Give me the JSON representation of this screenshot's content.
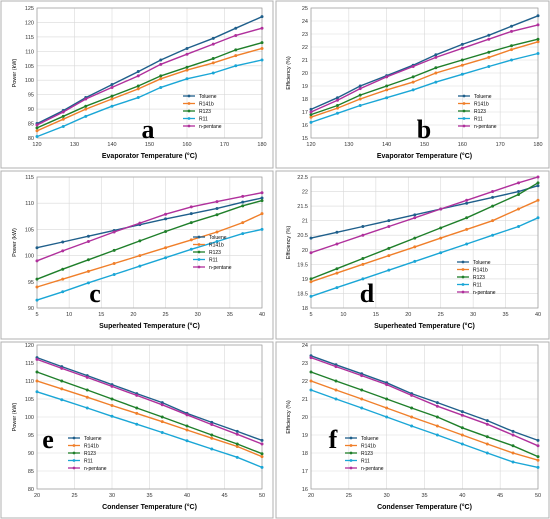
{
  "colors": {
    "Toluene": "#1f5f8b",
    "R141b": "#f07f2a",
    "R123": "#1f7f2a",
    "R11": "#1aa6d6",
    "n-pentane": "#b0309c"
  },
  "chart_data": [
    {
      "type": "line",
      "letter": "a",
      "xlabel": "Evaporator Temperature (°C)",
      "ylabel": "Power (kW)",
      "xlim": [
        120,
        180
      ],
      "ylim": [
        80,
        125
      ],
      "xticks": [
        120,
        130,
        140,
        150,
        160,
        170,
        180
      ],
      "yticks": [
        80,
        85,
        90,
        95,
        100,
        105,
        110,
        115,
        120,
        125
      ],
      "legend": "right",
      "x": [
        120,
        127,
        133,
        140,
        147,
        153,
        160,
        167,
        173,
        180
      ],
      "series": [
        {
          "name": "Toluene",
          "values": [
            85,
            89.5,
            94,
            98.5,
            103,
            107,
            111,
            114.5,
            118,
            122
          ]
        },
        {
          "name": "R141b",
          "values": [
            82.5,
            86.5,
            90,
            93.5,
            97,
            100.5,
            103.5,
            106,
            108.5,
            111
          ]
        },
        {
          "name": "R123",
          "values": [
            83.5,
            87.5,
            91,
            94.5,
            98,
            101.5,
            104.5,
            107.5,
            110.5,
            113
          ]
        },
        {
          "name": "R11",
          "values": [
            80.5,
            84,
            87.5,
            91,
            94,
            97.5,
            100.5,
            102.5,
            105,
            107
          ]
        },
        {
          "name": "n-pentane",
          "values": [
            84.5,
            89,
            93.5,
            97.5,
            101.5,
            105.5,
            109,
            112.5,
            115.5,
            118
          ]
        }
      ]
    },
    {
      "type": "line",
      "letter": "b",
      "xlabel": "Evaporator Temperature (°C)",
      "ylabel": "Efficiency (%)",
      "xlim": [
        120,
        180
      ],
      "ylim": [
        15,
        25
      ],
      "xticks": [
        120,
        130,
        140,
        150,
        160,
        170,
        180
      ],
      "yticks": [
        15,
        16,
        17,
        18,
        19,
        20,
        21,
        22,
        23,
        24,
        25
      ],
      "legend": "right",
      "x": [
        120,
        127,
        133,
        140,
        147,
        153,
        160,
        167,
        173,
        180
      ],
      "series": [
        {
          "name": "Toluene",
          "values": [
            17.2,
            18.1,
            19,
            19.8,
            20.6,
            21.4,
            22.2,
            22.9,
            23.6,
            24.4
          ]
        },
        {
          "name": "R141b",
          "values": [
            16.6,
            17.3,
            18,
            18.7,
            19.3,
            20,
            20.6,
            21.2,
            21.8,
            22.4
          ]
        },
        {
          "name": "R123",
          "values": [
            16.8,
            17.5,
            18.3,
            19,
            19.7,
            20.4,
            21,
            21.6,
            22.1,
            22.6
          ]
        },
        {
          "name": "R11",
          "values": [
            16.2,
            16.9,
            17.5,
            18.1,
            18.7,
            19.3,
            19.9,
            20.5,
            21,
            21.5
          ]
        },
        {
          "name": "n-pentane",
          "values": [
            17,
            17.9,
            18.8,
            19.7,
            20.5,
            21.2,
            21.9,
            22.6,
            23.2,
            23.7
          ]
        }
      ]
    },
    {
      "type": "line",
      "letter": "c",
      "xlabel": "Superheated Temperature (°C)",
      "ylabel": "Power (kW)",
      "xlim": [
        5,
        40
      ],
      "ylim": [
        90,
        115
      ],
      "xticks": [
        5,
        10,
        15,
        20,
        25,
        30,
        35,
        40
      ],
      "yticks": [
        90,
        95,
        100,
        105,
        110,
        115
      ],
      "legend": "bottom-right",
      "x": [
        5,
        9,
        13,
        17,
        21,
        25,
        29,
        33,
        37,
        40
      ],
      "series": [
        {
          "name": "Toluene",
          "values": [
            101.5,
            102.6,
            103.7,
            104.8,
            105.9,
            107,
            108,
            109,
            110.2,
            111
          ]
        },
        {
          "name": "R141b",
          "values": [
            94,
            95.5,
            97,
            98.5,
            100,
            101.5,
            103,
            104.5,
            106.3,
            108
          ]
        },
        {
          "name": "R123",
          "values": [
            95.5,
            97.4,
            99.2,
            101,
            102.8,
            104.6,
            106.3,
            107.8,
            109.5,
            110.5
          ]
        },
        {
          "name": "R11",
          "values": [
            91.5,
            93.1,
            94.8,
            96.4,
            98,
            99.6,
            101.2,
            102.7,
            104.2,
            105
          ]
        },
        {
          "name": "n-pentane",
          "values": [
            99,
            100.9,
            102.7,
            104.5,
            106.2,
            107.9,
            109.3,
            110.3,
            111.3,
            112
          ]
        }
      ]
    },
    {
      "type": "line",
      "letter": "d",
      "xlabel": "Superheated Temperature (°C)",
      "ylabel": "Efficiency (%)",
      "xlim": [
        5,
        40
      ],
      "ylim": [
        18,
        22.5
      ],
      "xticks": [
        5,
        10,
        15,
        20,
        25,
        30,
        35,
        40
      ],
      "yticks": [
        18,
        18.5,
        19,
        19.5,
        20,
        20.5,
        21,
        21.5,
        22,
        22.5
      ],
      "legend": "bottom-right",
      "x": [
        5,
        9,
        13,
        17,
        21,
        25,
        29,
        33,
        37,
        40
      ],
      "series": [
        {
          "name": "Toluene",
          "values": [
            20.4,
            20.6,
            20.8,
            21,
            21.2,
            21.4,
            21.6,
            21.8,
            22,
            22.2
          ]
        },
        {
          "name": "R141b",
          "values": [
            18.9,
            19.2,
            19.5,
            19.8,
            20.1,
            20.4,
            20.7,
            21,
            21.4,
            21.7
          ]
        },
        {
          "name": "R123",
          "values": [
            19,
            19.35,
            19.7,
            20.05,
            20.4,
            20.75,
            21.1,
            21.5,
            21.9,
            22.3
          ]
        },
        {
          "name": "R11",
          "values": [
            18.4,
            18.7,
            19,
            19.3,
            19.6,
            19.9,
            20.2,
            20.5,
            20.8,
            21.1
          ]
        },
        {
          "name": "n-pentane",
          "values": [
            19.9,
            20.2,
            20.5,
            20.8,
            21.1,
            21.4,
            21.7,
            22,
            22.3,
            22.5
          ]
        }
      ]
    },
    {
      "type": "line",
      "letter": "e",
      "xlabel": "Condenser Temperature (°C)",
      "ylabel": "Power (kW)",
      "xlim": [
        20,
        50
      ],
      "ylim": [
        80,
        120
      ],
      "xticks": [
        20,
        25,
        30,
        35,
        40,
        45,
        50
      ],
      "yticks": [
        80,
        85,
        90,
        95,
        100,
        105,
        110,
        115,
        120
      ],
      "legend": "bottom-left",
      "x": [
        20,
        23.3,
        26.7,
        30,
        33.3,
        36.7,
        40,
        43.3,
        46.7,
        50
      ],
      "series": [
        {
          "name": "Toluene",
          "values": [
            116.5,
            114,
            111.5,
            109,
            106.5,
            104,
            101,
            98.5,
            96,
            93.5
          ]
        },
        {
          "name": "R141b",
          "values": [
            110,
            107.8,
            105.5,
            103.2,
            101,
            98.7,
            96.4,
            94.1,
            91.8,
            89
          ]
        },
        {
          "name": "R123",
          "values": [
            112.5,
            110,
            107.5,
            105,
            102.5,
            100,
            97.5,
            95,
            92.5,
            89.8
          ]
        },
        {
          "name": "R11",
          "values": [
            107,
            104.8,
            102.5,
            100.2,
            98,
            95.7,
            93.4,
            91.1,
            88.8,
            86
          ]
        },
        {
          "name": "n-pentane",
          "values": [
            116,
            113.5,
            111,
            108.5,
            106,
            103.4,
            100.6,
            97.9,
            95.2,
            92.5
          ]
        }
      ]
    },
    {
      "type": "line",
      "letter": "f",
      "xlabel": "Condenser Temperature (°C)",
      "ylabel": "Efficiency (%)",
      "xlim": [
        20,
        50
      ],
      "ylim": [
        16,
        24
      ],
      "xticks": [
        20,
        25,
        30,
        35,
        40,
        45,
        50
      ],
      "yticks": [
        16,
        17,
        18,
        19,
        20,
        21,
        22,
        23,
        24
      ],
      "legend": "bottom-left",
      "x": [
        20,
        23.3,
        26.7,
        30,
        33.3,
        36.7,
        40,
        43.3,
        46.7,
        50
      ],
      "series": [
        {
          "name": "Toluene",
          "values": [
            23.4,
            22.9,
            22.4,
            21.9,
            21.3,
            20.8,
            20.3,
            19.8,
            19.2,
            18.7
          ]
        },
        {
          "name": "R141b",
          "values": [
            22,
            21.5,
            21,
            20.5,
            20,
            19.5,
            19,
            18.5,
            18,
            17.6
          ]
        },
        {
          "name": "R123",
          "values": [
            22.5,
            22,
            21.5,
            21,
            20.5,
            20,
            19.4,
            18.9,
            18.4,
            17.8
          ]
        },
        {
          "name": "R11",
          "values": [
            21.5,
            21,
            20.5,
            20,
            19.5,
            19,
            18.5,
            18,
            17.5,
            17.2
          ]
        },
        {
          "name": "n-pentane",
          "values": [
            23.3,
            22.8,
            22.3,
            21.8,
            21.2,
            20.6,
            20.1,
            19.6,
            19,
            18.4
          ]
        }
      ]
    }
  ]
}
